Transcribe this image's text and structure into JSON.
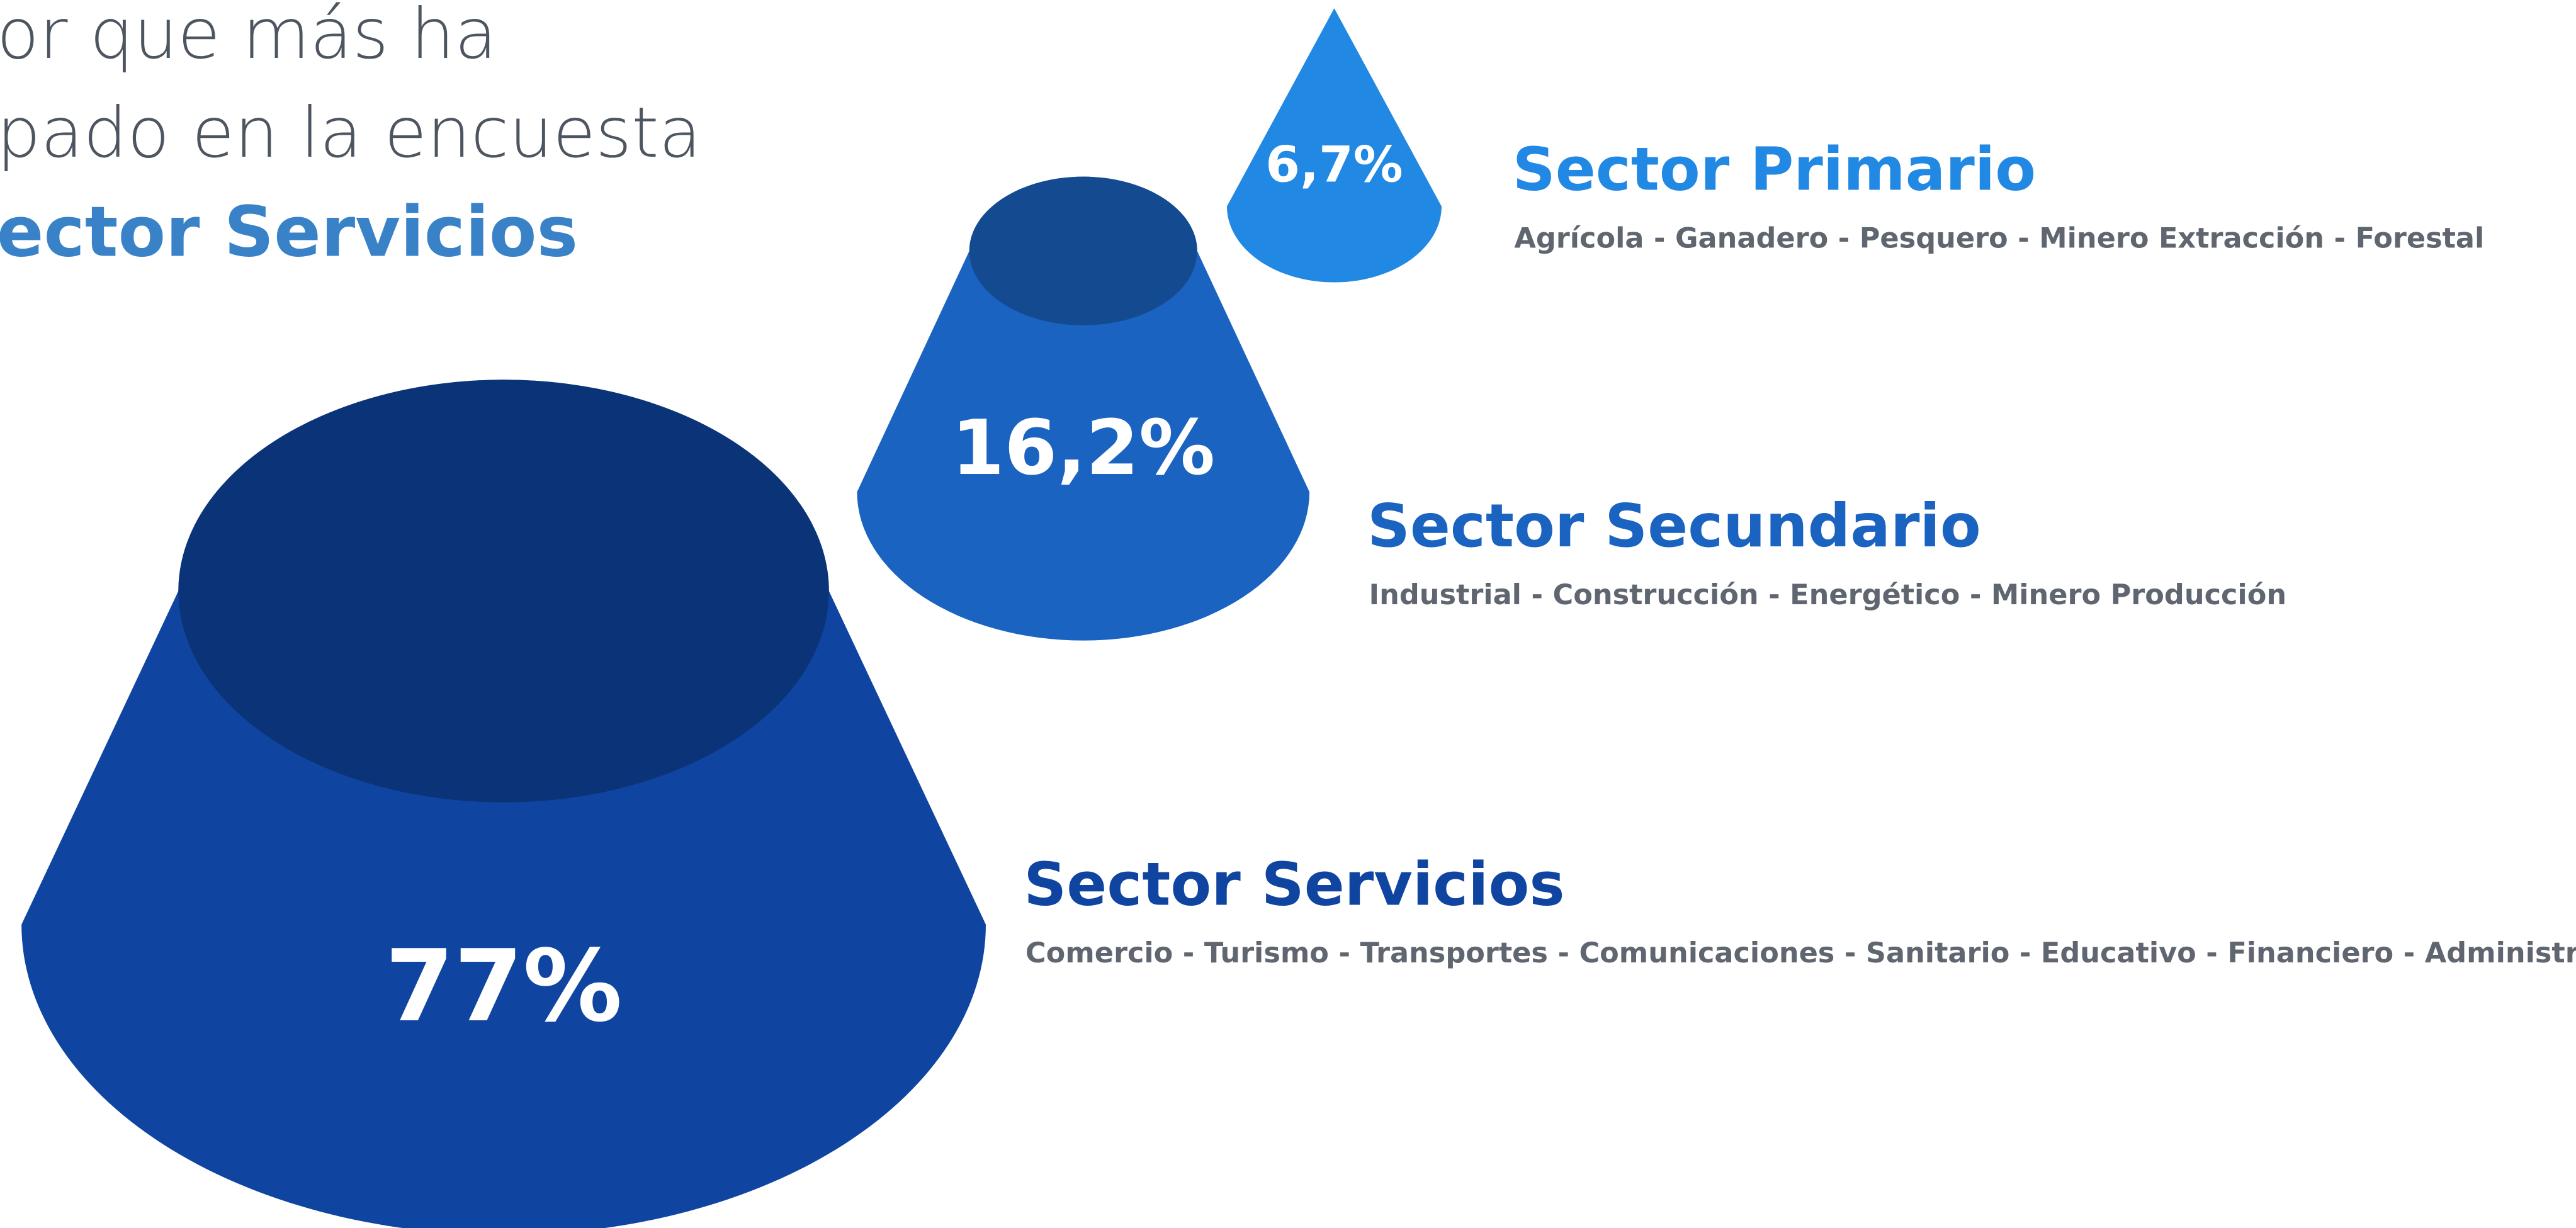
{
  "chart_data": {
    "type": "cone",
    "title_lines": [
      "or que más ha",
      "pado en la encuesta",
      "ector Servicios"
    ],
    "categories": [
      "Sector Primario",
      "Sector Secundario",
      "Sector Servicios"
    ],
    "descriptions": [
      "Agrícola - Ganadero - Pesquero - Minero Extracción - Forestal",
      "Industrial - Construcción - Energético - Minero Producción",
      "Comercio - Turismo - Transportes - Comunicaciones - Sanitario - Educativo - Financiero - Administrativo"
    ],
    "values": [
      6.7,
      16.2,
      77
    ],
    "value_labels": [
      "6,7%",
      "16,2%",
      "77%"
    ],
    "colors": [
      "#2188e3",
      "#1a63c0",
      "#0f45a0"
    ]
  }
}
